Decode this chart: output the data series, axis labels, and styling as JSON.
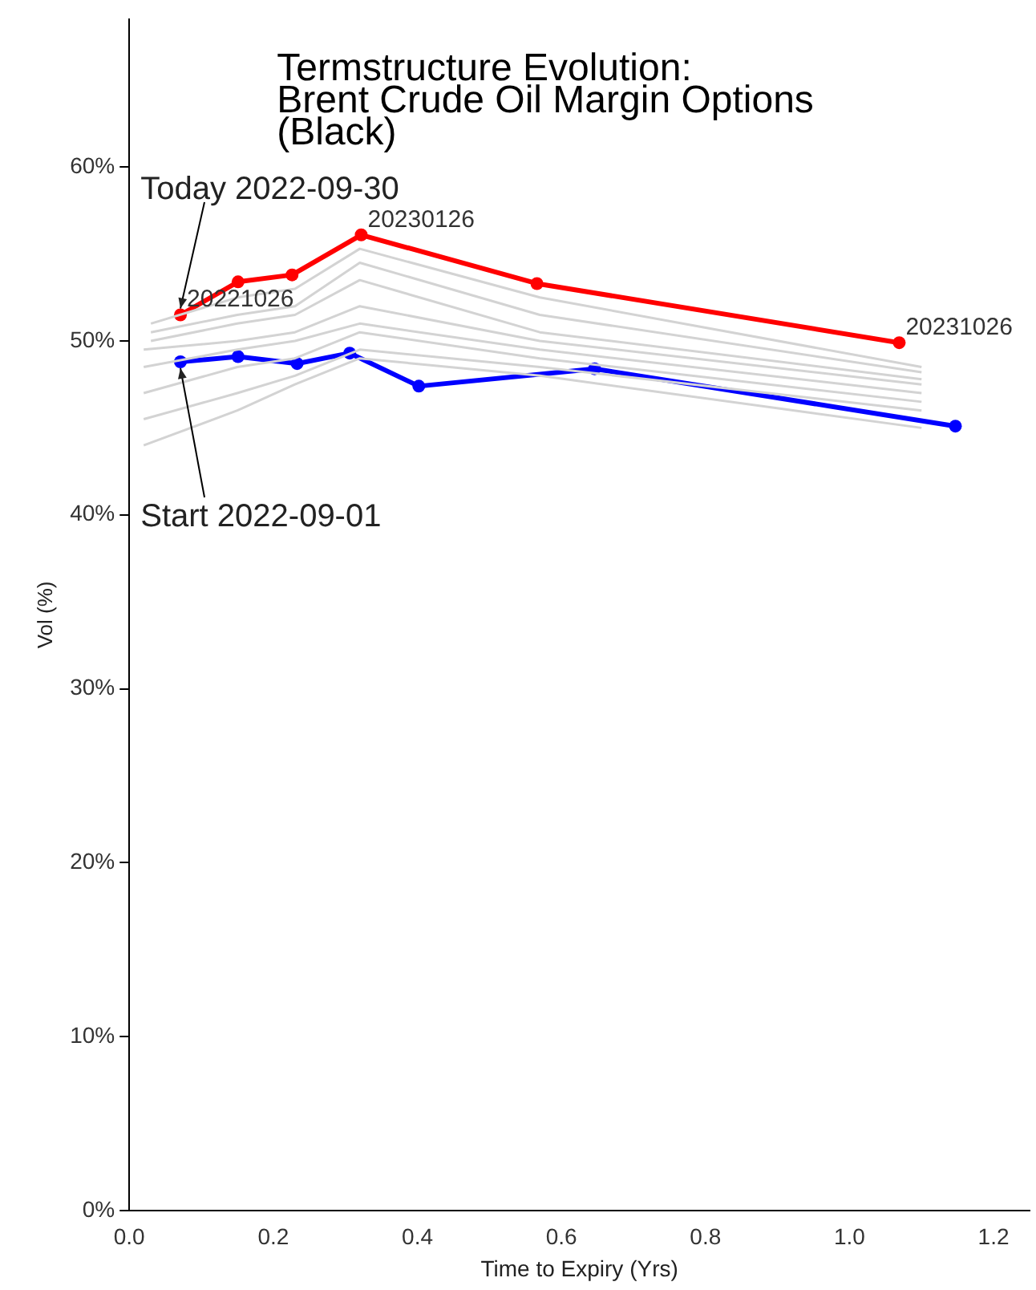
{
  "chart_data": {
    "type": "line",
    "title": "Termstructure Evolution:\nBrent Crude Oil Margin Options\n(Black)",
    "xlabel": "Time to Expiry (Yrs)",
    "ylabel": "Vol (%)",
    "xlim": [
      0,
      1.25
    ],
    "xticks": [
      {
        "value": 0,
        "label": "0.0"
      },
      {
        "value": 0.2,
        "label": "0.2"
      },
      {
        "value": 0.4,
        "label": "0.4"
      },
      {
        "value": 0.6,
        "label": "0.6"
      },
      {
        "value": 0.8,
        "label": "0.8"
      },
      {
        "value": 1,
        "label": "1.0"
      },
      {
        "value": 1.2,
        "label": "1.2"
      }
    ],
    "ylim": [
      0,
      68.5
    ],
    "yticks": [
      {
        "value": 0,
        "label": "0%"
      },
      {
        "value": 10,
        "label": "10%"
      },
      {
        "value": 20,
        "label": "20%"
      },
      {
        "value": 30,
        "label": "30%"
      },
      {
        "value": 40,
        "label": "40%"
      },
      {
        "value": 50,
        "label": "50%"
      },
      {
        "value": 60,
        "label": "60%"
      }
    ],
    "grid": false,
    "legend": false,
    "series": [
      {
        "color": "#d3d3d3",
        "marker": "none",
        "x": [
          0.03,
          0.15,
          0.23,
          0.32,
          0.57,
          1.1
        ],
        "values": [
          51,
          52.5,
          53,
          55.3,
          52.5,
          48.5
        ]
      },
      {
        "color": "#d3d3d3",
        "marker": "none",
        "x": [
          0.03,
          0.15,
          0.23,
          0.32,
          0.57,
          1.1
        ],
        "values": [
          50.5,
          51.5,
          52,
          54.5,
          51.5,
          48.2
        ]
      },
      {
        "color": "#d3d3d3",
        "marker": "none",
        "x": [
          0.03,
          0.15,
          0.23,
          0.32,
          0.57,
          1.1
        ],
        "values": [
          50,
          51,
          51.5,
          53.5,
          50.5,
          47.8
        ]
      },
      {
        "color": "#d3d3d3",
        "marker": "none",
        "x": [
          0.02,
          0.15,
          0.23,
          0.32,
          0.57,
          1.1
        ],
        "values": [
          49.5,
          50,
          50.5,
          52,
          50,
          47.5
        ]
      },
      {
        "color": "#d3d3d3",
        "marker": "none",
        "x": [
          0.02,
          0.15,
          0.23,
          0.32,
          0.57,
          1.1
        ],
        "values": [
          48.5,
          49.5,
          50,
          51,
          49.5,
          47
        ]
      },
      {
        "color": "#d3d3d3",
        "marker": "none",
        "x": [
          0.02,
          0.15,
          0.23,
          0.32,
          0.57,
          1.1
        ],
        "values": [
          47,
          48.5,
          49,
          50.5,
          49,
          46.5
        ]
      },
      {
        "color": "#d3d3d3",
        "marker": "none",
        "x": [
          0.02,
          0.15,
          0.23,
          0.32,
          0.57,
          1.1
        ],
        "values": [
          45.5,
          47,
          48,
          49.5,
          48.5,
          46
        ]
      },
      {
        "color": "#d3d3d3",
        "marker": "none",
        "x": [
          0.02,
          0.15,
          0.23,
          0.32,
          0.57,
          1.1
        ],
        "values": [
          44,
          46,
          47.5,
          49,
          48,
          45
        ]
      },
      {
        "color": "#ff0000",
        "marker": "circle",
        "x": [
          0.071,
          0.151,
          0.226,
          0.322,
          0.566,
          1.069
        ],
        "values": [
          51.5,
          53.4,
          53.8,
          56.1,
          53.3,
          49.9
        ]
      },
      {
        "color": "#0000ff",
        "marker": "circle",
        "x": [
          0.071,
          0.151,
          0.233,
          0.306,
          0.402,
          0.646,
          1.147
        ],
        "values": [
          48.8,
          49.1,
          48.7,
          49.3,
          47.4,
          48.4,
          45.1
        ]
      }
    ],
    "annotations": [
      {
        "text": "Today 2022-09-30",
        "x": 0.071,
        "y": 51.5
      },
      {
        "text": "Start 2022-09-01",
        "x": 0.071,
        "y": 48.8
      },
      {
        "text": "20221026",
        "x": 0.071,
        "y": 51.5
      },
      {
        "text": "20230126",
        "x": 0.322,
        "y": 56.1
      },
      {
        "text": "20231026",
        "x": 1.069,
        "y": 49.9
      }
    ]
  }
}
